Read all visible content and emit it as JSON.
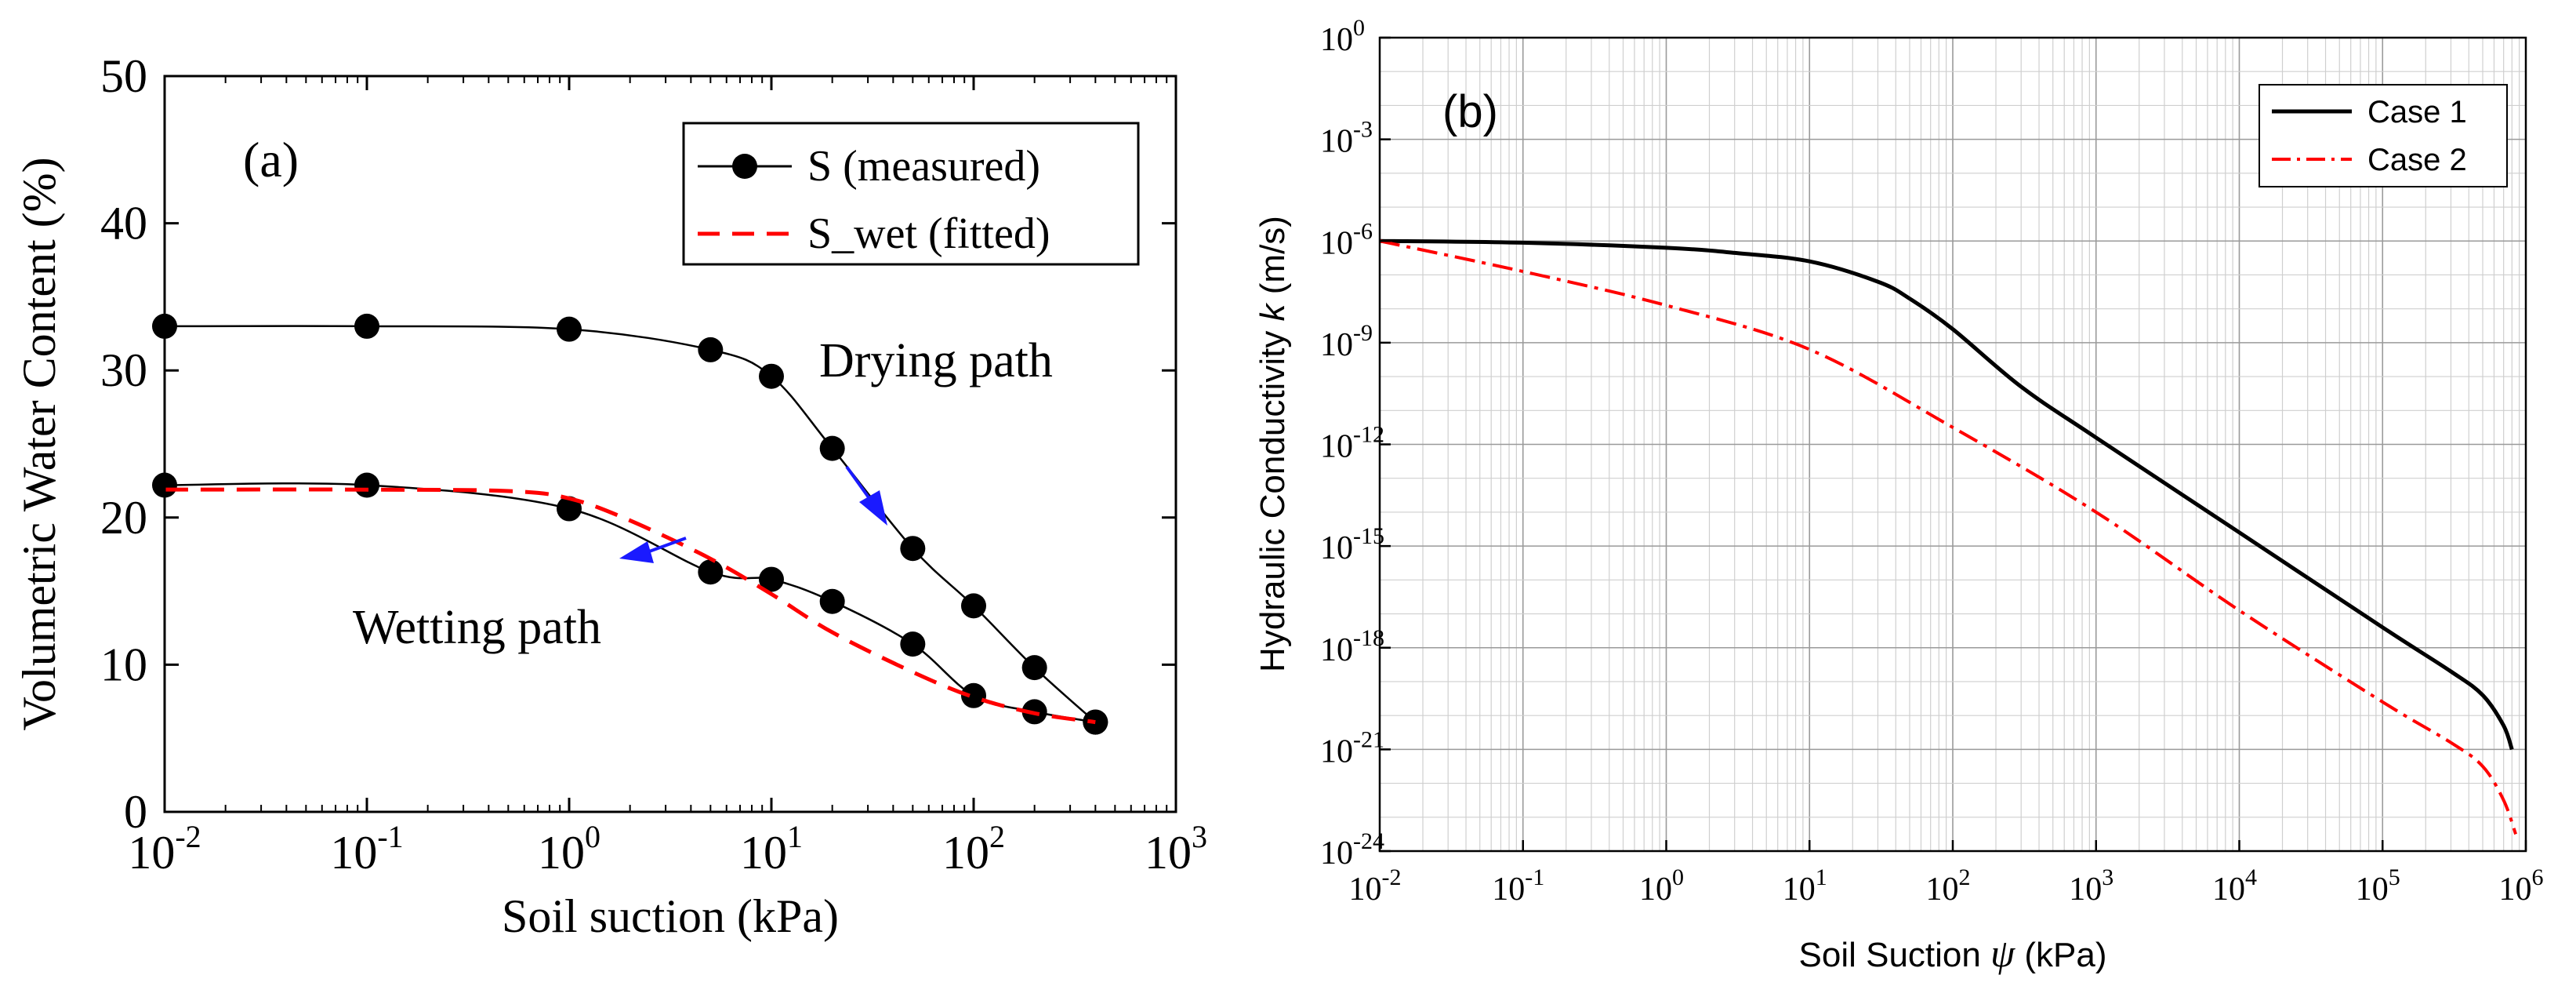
{
  "chart_data": [
    {
      "id": "a",
      "type": "line",
      "panel_label": "(a)",
      "xlabel": "Soil suction (kPa)",
      "ylabel": "Volumetric Water Content (%)",
      "xscale": "log",
      "xlim": [
        0.01,
        1000
      ],
      "ylim": [
        0,
        50
      ],
      "x_tick_labels": [
        {
          "base": "10",
          "exp": "-2"
        },
        {
          "base": "10",
          "exp": "-1"
        },
        {
          "base": "10",
          "exp": "0"
        },
        {
          "base": "10",
          "exp": "1"
        },
        {
          "base": "10",
          "exp": "2"
        },
        {
          "base": "10",
          "exp": "3"
        }
      ],
      "y_ticks": [
        "0",
        "10",
        "20",
        "30",
        "40",
        "50"
      ],
      "grid": false,
      "legend_position": "top-right",
      "series": [
        {
          "name": "S (measured)",
          "role": "drying",
          "color": "#000000",
          "style": "solid-markers",
          "x": [
            0.01,
            0.1,
            1,
            5,
            10,
            20,
            50,
            100,
            200,
            400
          ],
          "y": [
            33.0,
            33.0,
            32.8,
            31.4,
            29.6,
            24.7,
            17.9,
            14.0,
            9.8,
            6.1
          ]
        },
        {
          "name": "S (measured)",
          "role": "wetting",
          "color": "#000000",
          "style": "solid-markers",
          "x": [
            0.01,
            0.1,
            1,
            5,
            10,
            20,
            50,
            100,
            200,
            400
          ],
          "y": [
            22.2,
            22.2,
            20.6,
            16.3,
            15.8,
            14.3,
            11.4,
            7.9,
            6.8,
            6.1
          ]
        },
        {
          "name": "S_wet (fitted)",
          "color": "#ff0000",
          "style": "dashed",
          "x": [
            0.01,
            0.1,
            0.5,
            1,
            2,
            5,
            10,
            20,
            50,
            100,
            200,
            400
          ],
          "y": [
            21.9,
            21.9,
            21.8,
            21.3,
            19.8,
            17.2,
            14.8,
            12.2,
            9.5,
            7.8,
            6.7,
            6.1
          ]
        }
      ],
      "annotations": [
        "Drying path",
        "Wetting path"
      ]
    },
    {
      "id": "b",
      "type": "line",
      "panel_label": "(b)",
      "xlabel_prefix": "Soil Suction ",
      "xlabel_symbol": "ψ",
      "xlabel_suffix": " (kPa)",
      "ylabel_prefix": "Hydraulic Conductivity ",
      "ylabel_symbol": "k",
      "ylabel_suffix": " (m/s)",
      "xscale": "log",
      "yscale": "log",
      "xlim": [
        0.01,
        1000000
      ],
      "ylim": [
        1e-24,
        1
      ],
      "x_tick_labels": [
        {
          "base": "10",
          "exp": "-2"
        },
        {
          "base": "10",
          "exp": "-1"
        },
        {
          "base": "10",
          "exp": "0"
        },
        {
          "base": "10",
          "exp": "1"
        },
        {
          "base": "10",
          "exp": "2"
        },
        {
          "base": "10",
          "exp": "3"
        },
        {
          "base": "10",
          "exp": "4"
        },
        {
          "base": "10",
          "exp": "5"
        },
        {
          "base": "10",
          "exp": "6"
        }
      ],
      "y_tick_labels": [
        {
          "base": "10",
          "exp": "-24"
        },
        {
          "base": "10",
          "exp": "-21"
        },
        {
          "base": "10",
          "exp": "-18"
        },
        {
          "base": "10",
          "exp": "-15"
        },
        {
          "base": "10",
          "exp": "-12"
        },
        {
          "base": "10",
          "exp": "-9"
        },
        {
          "base": "10",
          "exp": "-6"
        },
        {
          "base": "10",
          "exp": "-3"
        },
        {
          "base": "10",
          "exp": "0"
        }
      ],
      "grid": true,
      "legend_position": "top-right",
      "series": [
        {
          "name": "Case 1",
          "color": "#000000",
          "style": "solid",
          "x": [
            0.01,
            0.1,
            1,
            3,
            10,
            30,
            50,
            100,
            300,
            1000,
            10000,
            100000,
            300000,
            500000,
            700000,
            800000
          ],
          "log10_y": [
            -6.0,
            -6.05,
            -6.2,
            -6.35,
            -6.6,
            -7.2,
            -7.7,
            -8.6,
            -10.3,
            -11.8,
            -14.6,
            -17.4,
            -18.7,
            -19.4,
            -20.3,
            -21.0
          ]
        },
        {
          "name": "Case 2",
          "color": "#ff0000",
          "style": "dashdot",
          "x": [
            0.01,
            0.1,
            1,
            10,
            100,
            1000,
            10000,
            100000,
            300000,
            500000,
            700000,
            850000
          ],
          "log10_y": [
            -6.0,
            -6.9,
            -7.9,
            -9.2,
            -11.5,
            -14.0,
            -16.9,
            -19.6,
            -20.8,
            -21.5,
            -22.5,
            -23.5
          ]
        }
      ]
    }
  ]
}
